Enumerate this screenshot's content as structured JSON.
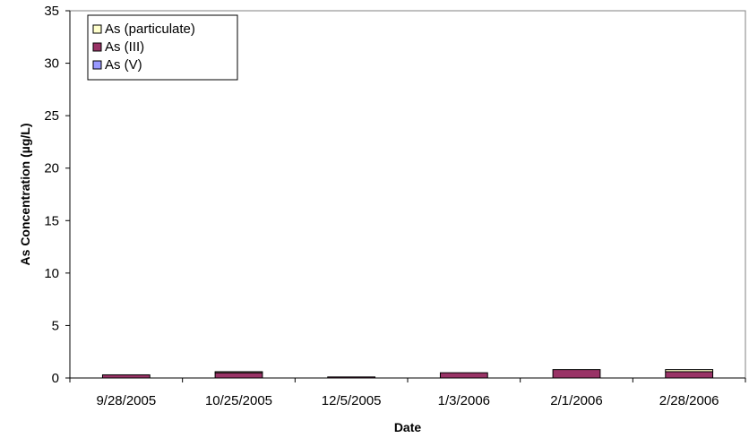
{
  "chart_data": {
    "type": "bar",
    "stacked": true,
    "xlabel": "Date",
    "ylabel": "As Concentration (µg/L)",
    "ylim": [
      0,
      35
    ],
    "yticks": [
      0,
      5,
      10,
      15,
      20,
      25,
      30,
      35
    ],
    "grid": false,
    "legend_position": "top-left",
    "categories": [
      "9/28/2005",
      "10/25/2005",
      "12/5/2005",
      "1/3/2006",
      "2/1/2006",
      "2/28/2006"
    ],
    "series": [
      {
        "name": "As (V)",
        "color": "#9999ff",
        "values": [
          0.0,
          0.0,
          0.0,
          0.0,
          0.0,
          0.0
        ]
      },
      {
        "name": "As (III)",
        "color": "#993366",
        "values": [
          0.3,
          0.5,
          0.1,
          0.5,
          0.8,
          0.6
        ]
      },
      {
        "name": "As (particulate)",
        "color": "#ffffcc",
        "values": [
          0.0,
          0.1,
          0.0,
          0.0,
          0.0,
          0.2
        ]
      }
    ],
    "legend_order": [
      "As (particulate)",
      "As (III)",
      "As (V)"
    ]
  }
}
